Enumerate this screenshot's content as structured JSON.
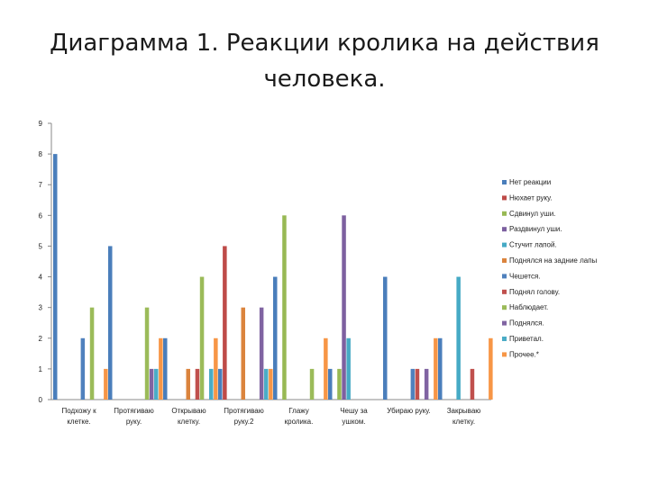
{
  "chart_data": {
    "type": "bar",
    "title": "Диаграмма 1. Реакции кролика на действия человека.",
    "ylim": [
      0,
      9
    ],
    "yticks": [
      "0",
      "1",
      "2",
      "3",
      "4",
      "5",
      "6",
      "7",
      "8",
      "9"
    ],
    "grid": false,
    "legend_position": "right",
    "categories": [
      [
        "Подхожу к",
        "клетке."
      ],
      [
        "Протягиваю",
        "руку."
      ],
      [
        "Открываю",
        "клетку."
      ],
      [
        "Протягиваю",
        "руку.2"
      ],
      [
        "Глажу",
        "кролика."
      ],
      [
        "Чешу за",
        "ушком."
      ],
      [
        "Убираю руку."
      ],
      [
        "Закрываю",
        "клетку."
      ]
    ],
    "series": [
      {
        "name": "Нет реакции",
        "color": "#4A7EBB",
        "values": [
          8,
          5,
          2,
          1,
          4,
          1,
          4,
          2
        ]
      },
      {
        "name": "Нюхает руку.",
        "color": "#BE4B48",
        "values": [
          0,
          0,
          0,
          5,
          0,
          0,
          0,
          0
        ]
      },
      {
        "name": "Сдвинул уши.",
        "color": "#98B954",
        "values": [
          0,
          0,
          0,
          0,
          6,
          1,
          0,
          0
        ]
      },
      {
        "name": "Раздвинул уши.",
        "color": "#7D60A0",
        "values": [
          0,
          0,
          0,
          0,
          0,
          6,
          0,
          0
        ]
      },
      {
        "name": "Стучит лапой.",
        "color": "#46AAC5",
        "values": [
          0,
          0,
          0,
          0,
          0,
          2,
          0,
          4
        ]
      },
      {
        "name": "Поднялся на задние лапы",
        "color": "#DB843D",
        "values": [
          0,
          0,
          1,
          3,
          0,
          0,
          0,
          0
        ]
      },
      {
        "name": "Чешется.",
        "color": "#4F81BD",
        "values": [
          2,
          0,
          0,
          0,
          0,
          0,
          1,
          0
        ]
      },
      {
        "name": "Поднял голову.",
        "color": "#C0504D",
        "values": [
          0,
          0,
          1,
          0,
          0,
          0,
          1,
          1
        ]
      },
      {
        "name": "Наблюдает.",
        "color": "#9BBB59",
        "values": [
          3,
          3,
          4,
          0,
          1,
          0,
          0,
          0
        ]
      },
      {
        "name": "Поднялся.",
        "color": "#8064A2",
        "values": [
          0,
          1,
          0,
          3,
          0,
          0,
          1,
          0
        ]
      },
      {
        "name": "Приветал.",
        "color": "#4BACC6",
        "values": [
          0,
          1,
          1,
          1,
          0,
          0,
          0,
          0
        ]
      },
      {
        "name": "Прочее.*",
        "color": "#F79646",
        "values": [
          1,
          2,
          2,
          1,
          2,
          0,
          2,
          2
        ]
      }
    ]
  }
}
